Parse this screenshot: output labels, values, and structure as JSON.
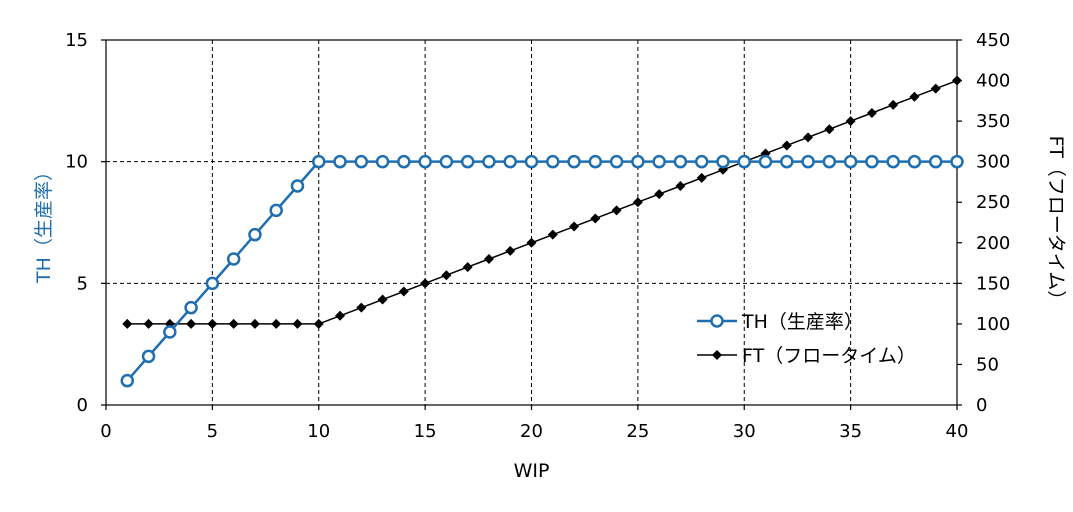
{
  "chart_data": {
    "type": "line",
    "title": "",
    "xlabel": "WIP",
    "ylabel_left": "TH（生産率）",
    "ylabel_right": "FT（フロータイム）",
    "xlim": [
      0,
      40
    ],
    "ylim_left": [
      0,
      15
    ],
    "ylim_right": [
      0,
      450
    ],
    "x_ticks": [
      0,
      5,
      10,
      15,
      20,
      25,
      30,
      35,
      40
    ],
    "y_left_ticks": [
      0,
      5,
      10,
      15
    ],
    "y_right_ticks": [
      0,
      50,
      100,
      150,
      200,
      250,
      300,
      350,
      400,
      450
    ],
    "grid": true,
    "legend_position": "right-middle",
    "series": [
      {
        "name": "TH（生産率）",
        "axis": "left",
        "marker": "circle",
        "color": "#1F6FB0",
        "x": [
          1,
          2,
          3,
          4,
          5,
          6,
          7,
          8,
          9,
          10,
          11,
          12,
          13,
          14,
          15,
          16,
          17,
          18,
          19,
          20,
          21,
          22,
          23,
          24,
          25,
          26,
          27,
          28,
          29,
          30,
          31,
          32,
          33,
          34,
          35,
          36,
          37,
          38,
          39,
          40
        ],
        "values": [
          1,
          2,
          3,
          4,
          5,
          6,
          7,
          8,
          9,
          10,
          10,
          10,
          10,
          10,
          10,
          10,
          10,
          10,
          10,
          10,
          10,
          10,
          10,
          10,
          10,
          10,
          10,
          10,
          10,
          10,
          10,
          10,
          10,
          10,
          10,
          10,
          10,
          10,
          10,
          10
        ]
      },
      {
        "name": "FT（フロータイム）",
        "axis": "right",
        "marker": "diamond",
        "color": "#000000",
        "x": [
          1,
          2,
          3,
          4,
          5,
          6,
          7,
          8,
          9,
          10,
          11,
          12,
          13,
          14,
          15,
          16,
          17,
          18,
          19,
          20,
          21,
          22,
          23,
          24,
          25,
          26,
          27,
          28,
          29,
          30,
          31,
          32,
          33,
          34,
          35,
          36,
          37,
          38,
          39,
          40
        ],
        "values": [
          100,
          100,
          100,
          100,
          100,
          100,
          100,
          100,
          100,
          100,
          110,
          120,
          130,
          140,
          150,
          160,
          170,
          180,
          190,
          200,
          210,
          220,
          230,
          240,
          250,
          260,
          270,
          280,
          290,
          300,
          310,
          320,
          330,
          340,
          350,
          360,
          370,
          380,
          390,
          400
        ]
      }
    ]
  }
}
